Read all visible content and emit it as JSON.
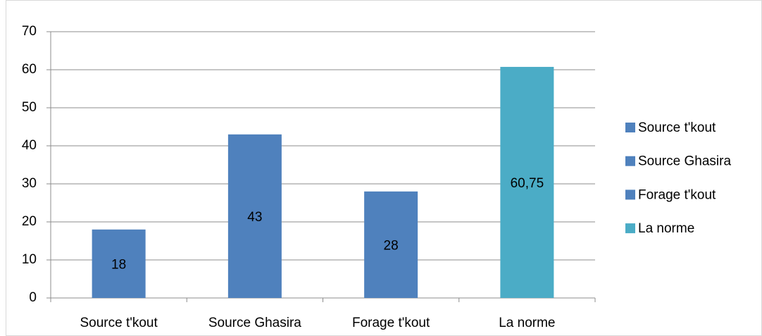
{
  "chart_data": {
    "type": "bar",
    "categories": [
      "Source t'kout",
      "Source Ghasira",
      "Forage t'kout",
      "La norme"
    ],
    "values": [
      18,
      43,
      28,
      60.75
    ],
    "value_labels": [
      "18",
      "43",
      "28",
      "60,75"
    ],
    "colors": [
      "#4f81bd",
      "#4f81bd",
      "#4f81bd",
      "#4bacc6"
    ],
    "ylim": [
      0,
      70
    ],
    "yticks": [
      0,
      10,
      20,
      30,
      40,
      50,
      60,
      70
    ],
    "grid": true,
    "legend": "right"
  }
}
